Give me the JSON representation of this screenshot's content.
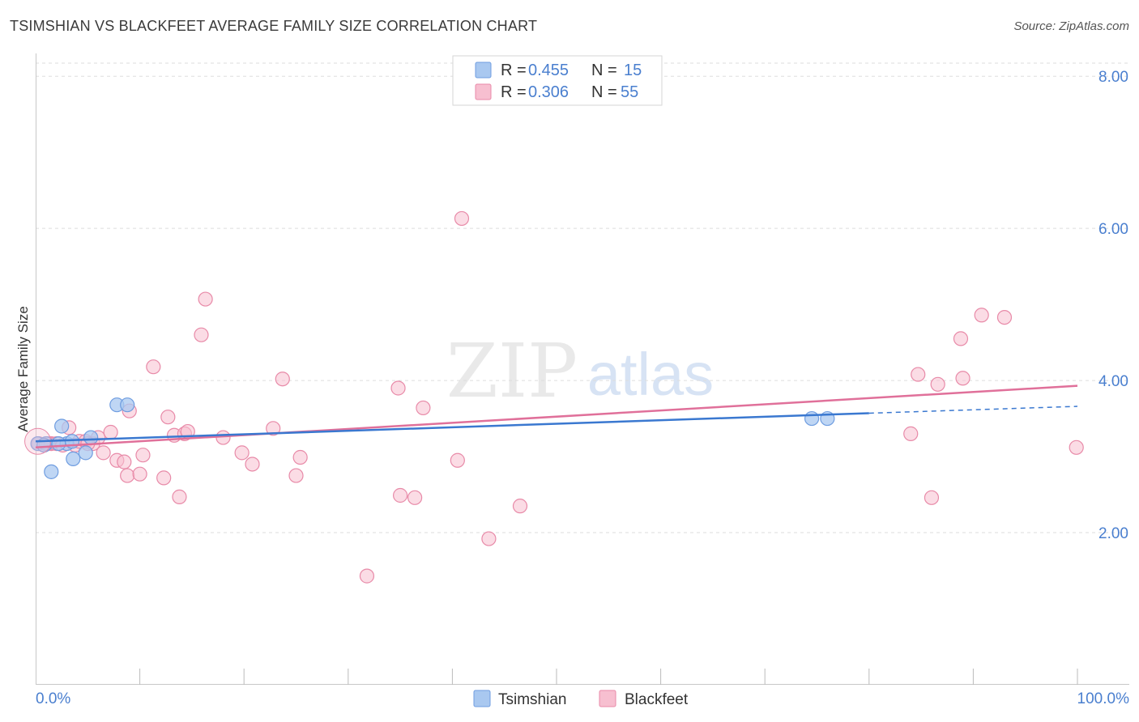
{
  "header": {
    "title": "TSIMSHIAN VS BLACKFEET AVERAGE FAMILY SIZE CORRELATION CHART",
    "source": "Source: ZipAtlas.com"
  },
  "watermark": {
    "zip": "ZIP",
    "atlas": "atlas"
  },
  "legend": {
    "r_label": "R =",
    "n_label": "N =",
    "entries": [
      {
        "series": "Tsimshian",
        "r": "0.455",
        "n": "15"
      },
      {
        "series": "Blackfeet",
        "r": "0.306",
        "n": "55"
      }
    ]
  },
  "colors": {
    "tsimshian_fill": "#a9c8f0",
    "tsimshian_stroke": "#6f9de0",
    "tsimshian_line": "#3a78d0",
    "blackfeet_fill": "#f7bfd0",
    "blackfeet_stroke": "#e88aa8",
    "blackfeet_line": "#e0709a",
    "tick_text": "#4a7fcf",
    "grid": "#dddddd"
  },
  "chart_data": {
    "type": "scatter",
    "title": "TSIMSHIAN VS BLACKFEET AVERAGE FAMILY SIZE CORRELATION CHART",
    "xlabel": "",
    "ylabel": "Average Family Size",
    "xlim": [
      0,
      100
    ],
    "ylim": [
      0,
      8.3
    ],
    "x_tick_labels": [
      "0.0%",
      "100.0%"
    ],
    "y_ticks": [
      2,
      4,
      6,
      8
    ],
    "y_tick_labels": [
      "2.00",
      "4.00",
      "6.00",
      "8.00"
    ],
    "grid": "horizontal dashed",
    "legend_position": "top-center and bottom-center",
    "series": [
      {
        "name": "Tsimshian",
        "points": [
          [
            0.2,
            3.17
          ],
          [
            1.0,
            3.17
          ],
          [
            1.5,
            2.8
          ],
          [
            2.5,
            3.4
          ],
          [
            3.0,
            3.17
          ],
          [
            3.5,
            3.2
          ],
          [
            3.6,
            2.97
          ],
          [
            4.8,
            3.05
          ],
          [
            5.3,
            3.25
          ],
          [
            7.8,
            3.68
          ],
          [
            8.8,
            3.68
          ],
          [
            74.5,
            3.5
          ],
          [
            76.0,
            3.5
          ],
          [
            0.8,
            3.15
          ],
          [
            2.2,
            3.17
          ]
        ],
        "trend": {
          "x0": 0,
          "y0": 3.2,
          "x1": 80,
          "y1": 3.57,
          "dash_to_x": 100,
          "dash_to_y": 3.66
        }
      },
      {
        "name": "Blackfeet",
        "points": [
          [
            0.3,
            3.17
          ],
          [
            0.8,
            3.15
          ],
          [
            1.5,
            3.17
          ],
          [
            2.0,
            3.17
          ],
          [
            3.2,
            3.38
          ],
          [
            3.8,
            3.15
          ],
          [
            4.2,
            3.2
          ],
          [
            4.8,
            3.2
          ],
          [
            5.5,
            3.17
          ],
          [
            6.0,
            3.25
          ],
          [
            6.5,
            3.05
          ],
          [
            7.2,
            3.32
          ],
          [
            7.8,
            2.95
          ],
          [
            8.5,
            2.93
          ],
          [
            8.8,
            2.75
          ],
          [
            9.0,
            3.6
          ],
          [
            10.0,
            2.77
          ],
          [
            10.3,
            3.02
          ],
          [
            11.3,
            4.18
          ],
          [
            12.3,
            2.72
          ],
          [
            12.7,
            3.52
          ],
          [
            13.3,
            3.28
          ],
          [
            13.8,
            2.47
          ],
          [
            14.3,
            3.3
          ],
          [
            14.6,
            3.33
          ],
          [
            15.9,
            4.6
          ],
          [
            16.3,
            5.07
          ],
          [
            18.0,
            3.25
          ],
          [
            19.8,
            3.05
          ],
          [
            20.8,
            2.9
          ],
          [
            22.8,
            3.37
          ],
          [
            23.7,
            4.02
          ],
          [
            25.0,
            2.75
          ],
          [
            25.4,
            2.99
          ],
          [
            31.8,
            1.43
          ],
          [
            34.8,
            3.9
          ],
          [
            35.0,
            2.49
          ],
          [
            36.4,
            2.46
          ],
          [
            37.2,
            3.64
          ],
          [
            40.5,
            2.95
          ],
          [
            40.9,
            6.13
          ],
          [
            43.5,
            1.92
          ],
          [
            46.5,
            2.35
          ],
          [
            86.0,
            2.46
          ],
          [
            84.0,
            3.3
          ],
          [
            84.7,
            4.08
          ],
          [
            86.6,
            3.95
          ],
          [
            88.8,
            4.55
          ],
          [
            89.0,
            4.03
          ],
          [
            90.8,
            4.86
          ],
          [
            93.0,
            4.83
          ],
          [
            99.9,
            3.12
          ],
          [
            1.2,
            3.17
          ],
          [
            2.6,
            3.15
          ],
          [
            5.0,
            3.17
          ]
        ],
        "trend": {
          "x0": 0,
          "y0": 3.12,
          "x1": 100,
          "y1": 3.93
        }
      }
    ]
  }
}
